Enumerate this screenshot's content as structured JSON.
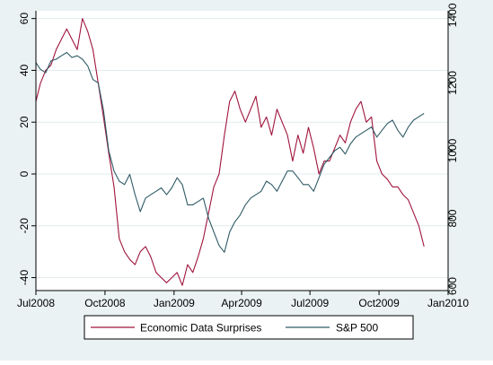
{
  "chart_data": {
    "type": "line",
    "title": "",
    "xlabel": "",
    "x_axis": {
      "type": "time",
      "ticks": [
        "Jul2008",
        "Oct2008",
        "Jan2009",
        "Apr2009",
        "Jul2009",
        "Oct2009",
        "Jan2010"
      ],
      "range": [
        "2008-07-01",
        "2010-01-01"
      ]
    },
    "y_left": {
      "range": [
        -45,
        63
      ],
      "ticks": [
        -40,
        -20,
        0,
        20,
        40,
        60
      ],
      "tick_labels": [
        "-40",
        "-20",
        "0",
        "20",
        "40",
        "60"
      ]
    },
    "y_right": {
      "range": [
        587,
        1413
      ],
      "ticks": [
        600,
        800,
        1000,
        1200,
        1400
      ],
      "tick_labels": [
        "600",
        "800",
        "1000",
        "1200",
        "1400"
      ]
    },
    "grid": "horizontal",
    "legend": {
      "position": "bottom"
    },
    "colors": {
      "surprises": "#a0143c",
      "sp500": "#2f5a66",
      "plot_bg": "#ffffff",
      "outer_bg": "#eaf2f3",
      "grid": "#e2ebee",
      "axis": "#000000"
    },
    "series": [
      {
        "name": "Economic Data Surprises",
        "axis": "left",
        "x": [
          "2008-07-01",
          "2008-07-07",
          "2008-07-14",
          "2008-07-21",
          "2008-07-28",
          "2008-08-04",
          "2008-08-11",
          "2008-08-18",
          "2008-08-25",
          "2008-09-01",
          "2008-09-08",
          "2008-09-15",
          "2008-09-22",
          "2008-09-29",
          "2008-10-06",
          "2008-10-13",
          "2008-10-20",
          "2008-10-27",
          "2008-11-03",
          "2008-11-10",
          "2008-11-17",
          "2008-11-24",
          "2008-12-01",
          "2008-12-08",
          "2008-12-15",
          "2008-12-22",
          "2008-12-29",
          "2009-01-05",
          "2009-01-12",
          "2009-01-19",
          "2009-01-26",
          "2009-02-02",
          "2009-02-09",
          "2009-02-16",
          "2009-02-23",
          "2009-03-02",
          "2009-03-09",
          "2009-03-16",
          "2009-03-23",
          "2009-03-30",
          "2009-04-06",
          "2009-04-13",
          "2009-04-20",
          "2009-04-27",
          "2009-05-04",
          "2009-05-11",
          "2009-05-18",
          "2009-05-25",
          "2009-06-01",
          "2009-06-08",
          "2009-06-15",
          "2009-06-22",
          "2009-06-29",
          "2009-07-06",
          "2009-07-13",
          "2009-07-20",
          "2009-07-27",
          "2009-08-03",
          "2009-08-10",
          "2009-08-17",
          "2009-08-24",
          "2009-08-31",
          "2009-09-07",
          "2009-09-14",
          "2009-09-21",
          "2009-09-28",
          "2009-10-05",
          "2009-10-12",
          "2009-10-19",
          "2009-10-26",
          "2009-11-02",
          "2009-11-09",
          "2009-11-16",
          "2009-11-23",
          "2009-11-30"
        ],
        "values": [
          28,
          35,
          40,
          42,
          48,
          52,
          56,
          52,
          48,
          60,
          55,
          48,
          35,
          22,
          8,
          -5,
          -25,
          -30,
          -33,
          -35,
          -30,
          -28,
          -32,
          -38,
          -40,
          -42,
          -40,
          -38,
          -43,
          -35,
          -38,
          -32,
          -25,
          -15,
          -5,
          0,
          15,
          28,
          32,
          25,
          20,
          25,
          30,
          18,
          22,
          15,
          25,
          20,
          15,
          5,
          15,
          8,
          18,
          10,
          0,
          5,
          5,
          10,
          15,
          12,
          20,
          25,
          28,
          20,
          22,
          5,
          0,
          -2,
          -5,
          -5,
          -8,
          -10,
          -15,
          -20,
          -28
        ]
      },
      {
        "name": "S&P 500",
        "axis": "right",
        "x": [
          "2008-07-01",
          "2008-07-07",
          "2008-07-14",
          "2008-07-21",
          "2008-07-28",
          "2008-08-04",
          "2008-08-11",
          "2008-08-18",
          "2008-08-25",
          "2008-09-01",
          "2008-09-08",
          "2008-09-15",
          "2008-09-22",
          "2008-09-29",
          "2008-10-06",
          "2008-10-13",
          "2008-10-20",
          "2008-10-27",
          "2008-11-03",
          "2008-11-10",
          "2008-11-17",
          "2008-11-24",
          "2008-12-01",
          "2008-12-08",
          "2008-12-15",
          "2008-12-22",
          "2008-12-29",
          "2009-01-05",
          "2009-01-12",
          "2009-01-19",
          "2009-01-26",
          "2009-02-02",
          "2009-02-09",
          "2009-02-16",
          "2009-02-23",
          "2009-03-02",
          "2009-03-09",
          "2009-03-16",
          "2009-03-23",
          "2009-03-30",
          "2009-04-06",
          "2009-04-13",
          "2009-04-20",
          "2009-04-27",
          "2009-05-04",
          "2009-05-11",
          "2009-05-18",
          "2009-05-25",
          "2009-06-01",
          "2009-06-08",
          "2009-06-15",
          "2009-06-22",
          "2009-06-29",
          "2009-07-06",
          "2009-07-13",
          "2009-07-20",
          "2009-07-27",
          "2009-08-03",
          "2009-08-10",
          "2009-08-17",
          "2009-08-24",
          "2009-08-31",
          "2009-09-07",
          "2009-09-14",
          "2009-09-21",
          "2009-09-28",
          "2009-10-05",
          "2009-10-12",
          "2009-10-19",
          "2009-10-26",
          "2009-11-02",
          "2009-11-09",
          "2009-11-16",
          "2009-11-23",
          "2009-11-30"
        ],
        "values": [
          1260,
          1240,
          1230,
          1265,
          1270,
          1280,
          1290,
          1275,
          1280,
          1270,
          1250,
          1210,
          1200,
          1120,
          1000,
          940,
          910,
          900,
          930,
          870,
          820,
          860,
          870,
          880,
          890,
          870,
          890,
          920,
          900,
          840,
          840,
          850,
          860,
          800,
          760,
          720,
          700,
          760,
          790,
          810,
          840,
          860,
          870,
          880,
          910,
          900,
          880,
          910,
          940,
          940,
          920,
          900,
          900,
          880,
          920,
          960,
          980,
          1000,
          1010,
          990,
          1020,
          1040,
          1050,
          1060,
          1070,
          1040,
          1060,
          1080,
          1090,
          1060,
          1040,
          1070,
          1090,
          1100,
          1110
        ]
      }
    ]
  }
}
